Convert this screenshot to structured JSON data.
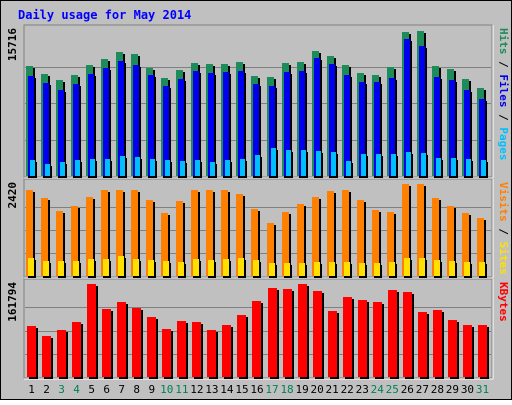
{
  "chart_data": {
    "type": "bar",
    "title": "Daily usage for May 2014",
    "categories": [
      "1",
      "2",
      "3",
      "4",
      "5",
      "6",
      "7",
      "8",
      "9",
      "10",
      "11",
      "12",
      "13",
      "14",
      "15",
      "16",
      "17",
      "18",
      "19",
      "20",
      "21",
      "22",
      "23",
      "24",
      "25",
      "26",
      "27",
      "28",
      "29",
      "30",
      "31"
    ],
    "weekend_days": [
      3,
      4,
      10,
      11,
      17,
      18,
      24,
      25,
      31
    ],
    "panels": [
      {
        "id": "hits",
        "ylim": [
          0,
          15716
        ],
        "max_label": "15716",
        "side_labels": [
          "Pages",
          "Files",
          "Hits"
        ],
        "series": [
          {
            "name": "Hits",
            "color": "#1e8c5a",
            "values": [
              11800,
              11000,
              10300,
              10900,
              12000,
              12600,
              13400,
              13100,
              11600,
              10600,
              11400,
              12200,
              12100,
              12100,
              12300,
              10800,
              10700,
              12200,
              12300,
              13500,
              12900,
              11900,
              11100,
              10900,
              11700,
              15500,
              15600,
              11800,
              11500,
              10400,
              9500
            ]
          },
          {
            "name": "Files",
            "color": "#0000ee",
            "values": [
              10800,
              10000,
              9300,
              9900,
              11000,
              11600,
              12400,
              12000,
              10900,
              9700,
              10400,
              11300,
              11100,
              11200,
              11300,
              9900,
              9700,
              11200,
              11300,
              12700,
              12100,
              10900,
              10100,
              10100,
              10600,
              14700,
              14000,
              10700,
              10300,
              9300,
              8300
            ]
          },
          {
            "name": "Pages",
            "color": "#00bfff",
            "values": [
              1700,
              1300,
              1500,
              1700,
              1800,
              1800,
              2200,
              2000,
              1800,
              1700,
              1600,
              1700,
              1500,
              1700,
              1800,
              2300,
              3000,
              2800,
              2800,
              2700,
              2600,
              1600,
              2400,
              2400,
              2400,
              2600,
              2500,
              1900,
              1900,
              1800,
              1700
            ]
          }
        ]
      },
      {
        "id": "visits",
        "ylim": [
          0,
          2420
        ],
        "max_label": "2420",
        "side_labels": [
          "Sites",
          "Visits"
        ],
        "series": [
          {
            "name": "Visits",
            "color": "#ff8000",
            "values": [
              2260,
              2040,
              1700,
              1840,
              2090,
              2250,
              2260,
              2250,
              1990,
              1670,
              1960,
              2260,
              2260,
              2260,
              2160,
              1760,
              1400,
              1690,
              1900,
              2080,
              2240,
              2250,
              1990,
              1730,
              1680,
              2420,
              2420,
              2050,
              1830,
              1670,
              1520
            ]
          },
          {
            "name": "Sites",
            "color": "#ffe000",
            "values": [
              480,
              400,
              390,
              400,
              440,
              460,
              520,
              460,
              430,
              390,
              370,
              450,
              420,
              450,
              470,
              430,
              330,
              350,
              330,
              380,
              360,
              370,
              330,
              330,
              370,
              480,
              480,
              420,
              400,
              370,
              360
            ]
          }
        ]
      },
      {
        "id": "kbytes",
        "ylim": [
          0,
          161794
        ],
        "max_label": "161794",
        "side_labels": [
          "KBytes"
        ],
        "series": [
          {
            "name": "KBytes",
            "color": "#ff0000",
            "values": [
              88000,
              72000,
              82000,
              96000,
              161800,
              118000,
              131000,
              120000,
              104000,
              84000,
              98000,
              96000,
              81000,
              90000,
              108000,
              132000,
              155000,
              153000,
              161000,
              150000,
              114000,
              139000,
              134000,
              131000,
              152000,
              148000,
              113000,
              116000,
              100000,
              91000,
              91000
            ]
          }
        ]
      }
    ]
  }
}
